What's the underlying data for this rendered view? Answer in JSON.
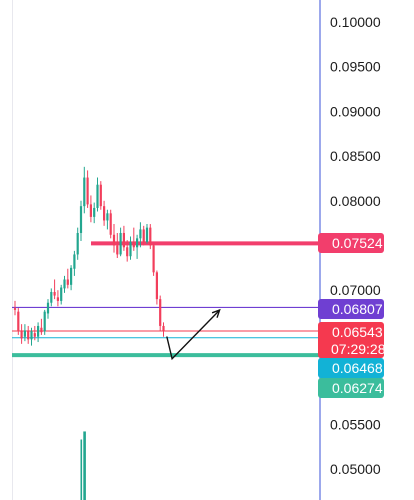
{
  "chart_data": {
    "type": "candlestick",
    "y_axis": {
      "position": "right",
      "ticks": [
        "0.10000",
        "0.09500",
        "0.09000",
        "0.08500",
        "0.08000",
        "0.07000",
        "0.05500",
        "0.05000"
      ],
      "range": [
        0.0482,
        0.1012
      ]
    },
    "candles": [
      [
        0.068,
        0.0688,
        0.0672,
        0.0678
      ],
      [
        0.0676,
        0.068,
        0.065,
        0.0655
      ],
      [
        0.0655,
        0.0662,
        0.064,
        0.0646
      ],
      [
        0.0648,
        0.0662,
        0.0643,
        0.0655
      ],
      [
        0.0655,
        0.066,
        0.064,
        0.0645
      ],
      [
        0.0645,
        0.0658,
        0.0638,
        0.0654
      ],
      [
        0.0652,
        0.066,
        0.0644,
        0.0648
      ],
      [
        0.0648,
        0.0664,
        0.0642,
        0.066
      ],
      [
        0.0658,
        0.0668,
        0.065,
        0.0653
      ],
      [
        0.0654,
        0.0678,
        0.065,
        0.0676
      ],
      [
        0.0674,
        0.069,
        0.0668,
        0.0686
      ],
      [
        0.0686,
        0.0702,
        0.0682,
        0.0698
      ],
      [
        0.0698,
        0.0712,
        0.069,
        0.0694
      ],
      [
        0.0692,
        0.07,
        0.0682,
        0.0688
      ],
      [
        0.0688,
        0.0706,
        0.0684,
        0.0703
      ],
      [
        0.0702,
        0.0716,
        0.0697,
        0.0712
      ],
      [
        0.0712,
        0.0724,
        0.0702,
        0.0706
      ],
      [
        0.0706,
        0.0728,
        0.07,
        0.0725
      ],
      [
        0.0724,
        0.0744,
        0.0716,
        0.074
      ],
      [
        0.074,
        0.077,
        0.0734,
        0.0764
      ],
      [
        0.0764,
        0.08,
        0.0755,
        0.0794
      ],
      [
        0.0794,
        0.0838,
        0.0786,
        0.0826
      ],
      [
        0.0826,
        0.0834,
        0.0792,
        0.0796
      ],
      [
        0.0796,
        0.0806,
        0.0776,
        0.0782
      ],
      [
        0.0782,
        0.0798,
        0.0775,
        0.0792
      ],
      [
        0.0792,
        0.0826,
        0.0788,
        0.0818
      ],
      [
        0.0818,
        0.0822,
        0.079,
        0.0794
      ],
      [
        0.0794,
        0.08,
        0.0772,
        0.0778
      ],
      [
        0.0778,
        0.079,
        0.0768,
        0.0786
      ],
      [
        0.0786,
        0.079,
        0.0758,
        0.0762
      ],
      [
        0.0762,
        0.0774,
        0.0742,
        0.075
      ],
      [
        0.075,
        0.0764,
        0.0736,
        0.074
      ],
      [
        0.074,
        0.077,
        0.0738,
        0.0764
      ],
      [
        0.0764,
        0.0772,
        0.0744,
        0.0748
      ],
      [
        0.0748,
        0.0756,
        0.0732,
        0.0738
      ],
      [
        0.0738,
        0.076,
        0.0734,
        0.0754
      ],
      [
        0.0754,
        0.077,
        0.0744,
        0.0748
      ],
      [
        0.0748,
        0.0762,
        0.0735,
        0.0758
      ],
      [
        0.0758,
        0.0776,
        0.0748,
        0.0768
      ],
      [
        0.0768,
        0.0772,
        0.075,
        0.0754
      ],
      [
        0.0754,
        0.0774,
        0.0752,
        0.077
      ],
      [
        0.077,
        0.0774,
        0.0746,
        0.075
      ],
      [
        0.075,
        0.0752,
        0.0716,
        0.072
      ],
      [
        0.072,
        0.0722,
        0.0684,
        0.069
      ],
      [
        0.069,
        0.0694,
        0.0654,
        0.066
      ],
      [
        0.066,
        0.0664,
        0.0648,
        0.0654
      ]
    ],
    "volume_spike_top": 0.0542,
    "horizontal_lines": [
      {
        "price": 0.07524,
        "label": "0.07524",
        "color": "#f23e6c"
      },
      {
        "price": 0.06807,
        "label": "0.06807",
        "color": "#6f3fd2"
      },
      {
        "price": 0.06543,
        "label": "0.06543",
        "sublabel": "07:29:28",
        "color": "#f5394f"
      },
      {
        "price": 0.06468,
        "label": "0.06468",
        "color": "#12b2d6"
      },
      {
        "price": 0.06274,
        "label": "0.06274",
        "color": "#3bbd9c"
      }
    ],
    "arrow": {
      "from": [
        46,
        0.0637
      ],
      "via": [
        47,
        0.0639
      ],
      "to": [
        52,
        0.068
      ]
    },
    "colors": {
      "up": "#22a68f",
      "down": "#f23e5b",
      "axis_line": "#5b6ee0"
    }
  }
}
